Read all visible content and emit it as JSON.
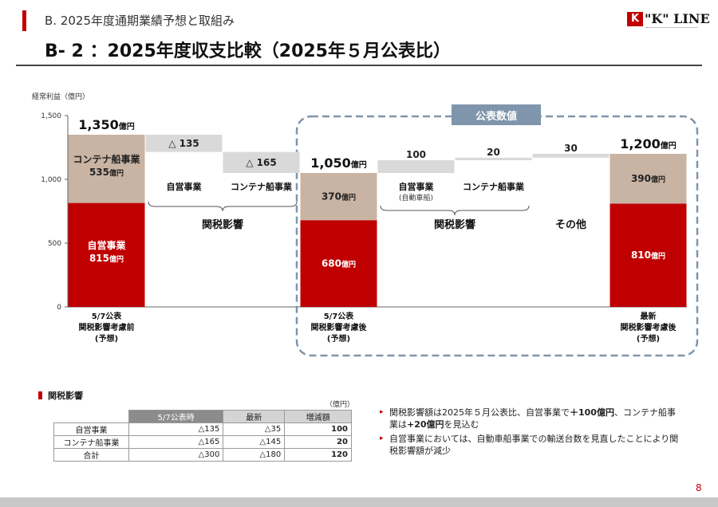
{
  "header": {
    "section": "B. 2025年度通期業績予想と取組み",
    "title": "B- 2 ：2025年度収支比較（2025年５月公表比）",
    "logo_mark": "K",
    "logo_text": "\"K\" LINE"
  },
  "chart_data": {
    "type": "bar",
    "subtype": "waterfall",
    "ylabel": "経常利益（億円）",
    "ylim": [
      0,
      1500
    ],
    "yticks": [
      "0",
      "500",
      "1,000",
      "1,500"
    ],
    "highlight_label": "公表数値",
    "bars": [
      {
        "kind": "stack",
        "category": "5/7公表\n関税影響考慮前\n(予想)",
        "segments": [
          {
            "name": "自営事業",
            "value": 815,
            "label": "815億円",
            "color": "#c00000"
          },
          {
            "name": "コンテナ船事業",
            "value": 535,
            "label": "535億円",
            "color": "#c9b3a3"
          }
        ],
        "total": 1350,
        "total_label": "1,350",
        "unit": "億円"
      },
      {
        "kind": "delta",
        "name": "自営事業",
        "from": 1350,
        "value": -135,
        "label": "△ 135"
      },
      {
        "kind": "delta",
        "name": "コンテナ船事業",
        "from": 1215,
        "value": -165,
        "label": "△ 165"
      },
      {
        "kind": "stack",
        "category": "5/7公表\n関税影響考慮後\n(予想)",
        "segments": [
          {
            "name": "自営事業",
            "value": 680,
            "label": "680億円",
            "color": "#c00000"
          },
          {
            "name": "コンテナ船事業",
            "value": 370,
            "label": "370億円",
            "color": "#c9b3a3"
          }
        ],
        "total": 1050,
        "total_label": "1,050",
        "unit": "億円"
      },
      {
        "kind": "delta",
        "name": "自営事業",
        "sublabel": "(自動車船)",
        "from": 1050,
        "value": 100,
        "label": "100"
      },
      {
        "kind": "delta",
        "name": "コンテナ船事業",
        "from": 1150,
        "value": 20,
        "label": "20"
      },
      {
        "kind": "delta",
        "name": "その他",
        "from": 1170,
        "value": 30,
        "label": "30"
      },
      {
        "kind": "stack",
        "category": "最新\n関税影響考慮後\n(予想)",
        "segments": [
          {
            "name": "自営事業",
            "value": 810,
            "label": "810億円",
            "color": "#c00000"
          },
          {
            "name": "コンテナ船事業",
            "value": 390,
            "label": "390億円",
            "color": "#c9b3a3"
          }
        ],
        "total": 1200,
        "total_label": "1,200",
        "unit": "億円"
      }
    ],
    "groups": [
      {
        "label": "関税影響",
        "from_bar": 1,
        "to_bar": 2
      },
      {
        "label": "関税影響",
        "from_bar": 4,
        "to_bar": 5
      }
    ],
    "delta_color": "#d9d9d9"
  },
  "tariff_table": {
    "title": "関税影響",
    "unit": "（億円）",
    "headers": [
      "",
      "5/7公表時",
      "最新",
      "増減額"
    ],
    "rows": [
      [
        "自営事業",
        "△135",
        "△35",
        "100"
      ],
      [
        "コンテナ船事業",
        "△165",
        "△145",
        "20"
      ],
      [
        "合計",
        "△300",
        "△180",
        "120"
      ]
    ]
  },
  "notes": [
    {
      "bullet": "▸",
      "parts": [
        "関税影響額は2025年５月公表比、自営事業で",
        "＋100億円",
        "、コンテナ船事業は",
        "+20億円",
        "を見込む"
      ]
    },
    {
      "bullet": "▸",
      "parts": [
        "自営事業においては、自動車船事業での輸送台数を見直したことにより関税影響額が減少"
      ]
    }
  ],
  "page_number": "8"
}
